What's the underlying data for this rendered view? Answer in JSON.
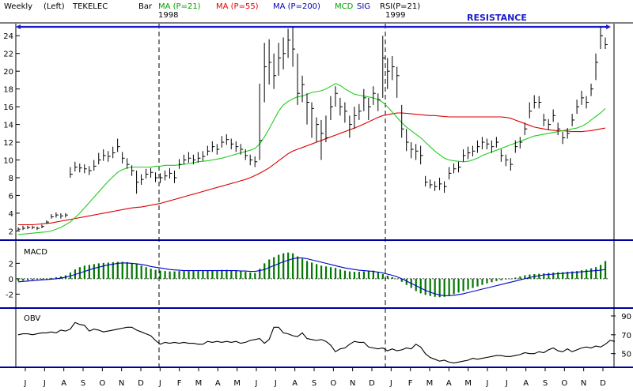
{
  "header": {
    "title_parts": [
      {
        "text": "Weekly",
        "color": "#000000"
      },
      {
        "text": "(Left)",
        "color": "#000000"
      },
      {
        "text": "TEKELEC",
        "color": "#000000"
      },
      {
        "text": "Bar",
        "color": "#000000"
      },
      {
        "text": "MA (P=21)",
        "color": "#00a000"
      },
      {
        "text": "MA (P=55)",
        "color": "#e00000"
      },
      {
        "text": "MA (P=200)",
        "color": "#0000b0"
      },
      {
        "text": "MCD",
        "color": "#00a000"
      },
      {
        "text": "SIG",
        "color": "#0000b0"
      },
      {
        "text": "RSI(P=21)",
        "color": "#000000"
      }
    ],
    "year_labels": [
      "1998",
      "1999"
    ],
    "resistance_label": "RESISTANCE"
  },
  "colors": {
    "price_bar": "#000000",
    "ma21": "#22cc22",
    "ma55": "#dd0000",
    "macd_hist": "#007700",
    "macd_signal": "#0000cc",
    "resistance": "#1a1ad0",
    "panel_border": "#0000a0",
    "obv_line": "#000000"
  },
  "chart_data": [
    {
      "type": "bar",
      "panel": "price",
      "title": "TEKELEC",
      "y_ticks": [
        2,
        4,
        6,
        8,
        10,
        12,
        14,
        16,
        18,
        20,
        22,
        24
      ],
      "ylim": [
        1.5,
        25
      ],
      "x_month_labels": [
        "J",
        "J",
        "A",
        "S",
        "O",
        "N",
        "D",
        "J",
        "F",
        "M",
        "A",
        "M",
        "J",
        "J",
        "A",
        "S",
        "O",
        "N",
        "D",
        "J",
        "F",
        "M",
        "A",
        "M",
        "J",
        "J",
        "A",
        "S",
        "O",
        "N",
        "D"
      ],
      "resistance_level": 25,
      "closes": [
        2.2,
        2.3,
        2.4,
        2.4,
        2.3,
        2.5,
        3.0,
        3.6,
        3.8,
        3.7,
        3.8,
        8.4,
        9.2,
        9.1,
        9.0,
        8.8,
        9.3,
        10.0,
        10.5,
        10.4,
        10.8,
        11.5,
        10.2,
        9.5,
        8.8,
        7.5,
        7.8,
        8.4,
        8.6,
        8.0,
        8.0,
        8.2,
        8.5,
        8.0,
        9.5,
        10.0,
        10.2,
        10.0,
        10.2,
        10.4,
        11.0,
        11.5,
        11.2,
        12.0,
        12.3,
        11.8,
        11.5,
        11.2,
        10.5,
        10.0,
        9.8,
        12.2,
        20.5,
        21.0,
        19.5,
        21.5,
        22.0,
        23.5,
        22.5,
        17.5,
        18.5,
        16.5,
        15.8,
        14.0,
        13.0,
        12.5,
        16.0,
        17.5,
        16.0,
        15.5,
        14.0,
        15.0,
        15.5,
        17.0,
        16.0,
        17.5,
        16.8,
        21.5,
        20.0,
        20.5,
        19.5,
        13.5,
        12.0,
        11.2,
        11.0,
        10.5,
        7.5,
        7.2,
        7.0,
        7.3,
        7.0,
        8.5,
        9.0,
        9.2,
        10.5,
        10.8,
        11.0,
        11.5,
        12.0,
        11.8,
        11.5,
        12.0,
        10.5,
        10.0,
        9.5,
        11.5,
        12.0,
        13.5,
        15.5,
        16.5,
        16.5,
        14.5,
        14.0,
        15.0,
        13.5,
        12.5,
        13.0,
        14.5,
        16.0,
        17.0,
        16.5,
        18.0,
        21.0,
        24.0,
        23.0
      ],
      "bar_highs": [
        2.4,
        2.6,
        2.6,
        2.6,
        2.5,
        2.7,
        3.2,
        3.9,
        4.1,
        4.0,
        4.0,
        9.2,
        9.8,
        9.6,
        9.5,
        9.3,
        10.0,
        10.8,
        11.2,
        11.0,
        11.5,
        12.4,
        10.9,
        10.2,
        9.4,
        8.8,
        8.4,
        9.0,
        9.1,
        8.6,
        8.5,
        8.8,
        9.1,
        8.8,
        10.1,
        10.6,
        10.9,
        10.6,
        10.9,
        11.0,
        11.6,
        12.1,
        11.8,
        12.7,
        12.9,
        12.4,
        12.1,
        11.8,
        11.2,
        10.6,
        10.4,
        18.6,
        23.2,
        23.6,
        22.0,
        23.2,
        23.8,
        24.8,
        25.0,
        22.0,
        19.5,
        17.5,
        16.5,
        14.8,
        14.5,
        15.0,
        17.2,
        18.3,
        17.0,
        16.5,
        15.0,
        16.0,
        16.3,
        18.0,
        17.0,
        18.3,
        17.5,
        24.0,
        21.5,
        21.7,
        20.5,
        16.2,
        13.5,
        12.0,
        11.8,
        11.6,
        8.2,
        7.8,
        7.6,
        8.0,
        7.6,
        9.2,
        9.6,
        9.8,
        11.2,
        11.5,
        11.6,
        12.2,
        12.6,
        12.4,
        12.2,
        12.6,
        11.2,
        10.6,
        10.2,
        12.2,
        12.6,
        14.2,
        16.5,
        17.3,
        17.2,
        15.2,
        14.6,
        15.7,
        14.2,
        13.2,
        13.6,
        15.2,
        16.8,
        17.8,
        17.2,
        18.6,
        22.0,
        25.0,
        23.8
      ],
      "bar_lows": [
        2.0,
        2.1,
        2.2,
        2.2,
        2.1,
        2.3,
        2.8,
        3.4,
        3.5,
        3.4,
        3.5,
        8.0,
        8.7,
        8.6,
        8.5,
        8.3,
        8.8,
        9.5,
        9.9,
        9.8,
        10.2,
        10.9,
        9.6,
        9.0,
        8.2,
        6.2,
        7.2,
        7.9,
        8.0,
        7.5,
        7.4,
        7.7,
        7.9,
        7.4,
        9.0,
        9.5,
        9.7,
        9.5,
        9.7,
        9.9,
        10.5,
        10.9,
        10.6,
        11.4,
        11.7,
        11.2,
        10.9,
        10.6,
        10.0,
        9.4,
        9.2,
        10.0,
        16.5,
        18.5,
        18.0,
        19.5,
        20.2,
        21.5,
        20.5,
        16.2,
        16.5,
        14.0,
        12.5,
        12.0,
        10.0,
        12.0,
        14.5,
        16.0,
        15.0,
        14.2,
        12.5,
        13.5,
        14.5,
        15.5,
        14.5,
        16.2,
        15.5,
        17.0,
        18.0,
        19.0,
        17.0,
        12.5,
        11.0,
        10.2,
        10.0,
        9.5,
        7.0,
        6.8,
        6.5,
        6.6,
        6.3,
        7.8,
        8.5,
        8.6,
        9.8,
        10.1,
        10.4,
        10.8,
        11.2,
        11.2,
        10.8,
        11.4,
        9.8,
        9.3,
        8.8,
        10.8,
        11.3,
        12.8,
        14.7,
        15.8,
        15.8,
        13.8,
        13.4,
        14.3,
        12.8,
        11.8,
        12.4,
        13.8,
        15.2,
        16.2,
        15.8,
        17.2,
        19.0,
        22.5,
        22.5
      ],
      "ma21": [
        1.6,
        1.65,
        1.7,
        1.75,
        1.8,
        1.85,
        1.9,
        2.0,
        2.2,
        2.4,
        2.7,
        3.0,
        3.5,
        4.0,
        4.6,
        5.2,
        5.8,
        6.4,
        7.0,
        7.6,
        8.1,
        8.6,
        8.9,
        9.1,
        9.2,
        9.2,
        9.2,
        9.2,
        9.2,
        9.3,
        9.3,
        9.4,
        9.4,
        9.4,
        9.45,
        9.5,
        9.6,
        9.7,
        9.8,
        9.85,
        9.9,
        10.0,
        10.1,
        10.2,
        10.35,
        10.5,
        10.65,
        10.8,
        10.95,
        11.1,
        11.3,
        11.8,
        12.6,
        13.5,
        14.5,
        15.5,
        16.2,
        16.6,
        16.9,
        17.1,
        17.2,
        17.4,
        17.6,
        17.7,
        17.8,
        18.0,
        18.3,
        18.6,
        18.4,
        18.0,
        17.7,
        17.4,
        17.3,
        17.2,
        17.1,
        17.0,
        16.8,
        16.5,
        16.0,
        15.4,
        14.8,
        14.2,
        13.7,
        13.3,
        12.9,
        12.5,
        12.0,
        11.5,
        11.0,
        10.6,
        10.2,
        10.0,
        9.9,
        9.85,
        9.8,
        9.85,
        10.0,
        10.2,
        10.5,
        10.7,
        10.9,
        11.1,
        11.3,
        11.5,
        11.7,
        11.9,
        12.1,
        12.3,
        12.5,
        12.7,
        12.8,
        12.9,
        13.0,
        13.1,
        13.2,
        13.3,
        13.4,
        13.5,
        13.6,
        13.8,
        14.1,
        14.5,
        14.9,
        15.3,
        15.8
      ],
      "ma55": [
        2.7,
        2.7,
        2.7,
        2.7,
        2.75,
        2.8,
        2.85,
        2.9,
        3.0,
        3.1,
        3.2,
        3.3,
        3.4,
        3.5,
        3.6,
        3.7,
        3.8,
        3.9,
        4.0,
        4.1,
        4.2,
        4.3,
        4.4,
        4.5,
        4.6,
        4.65,
        4.7,
        4.8,
        4.9,
        5.0,
        5.1,
        5.25,
        5.4,
        5.55,
        5.7,
        5.85,
        6.0,
        6.15,
        6.3,
        6.45,
        6.6,
        6.75,
        6.9,
        7.05,
        7.2,
        7.35,
        7.5,
        7.65,
        7.8,
        8.0,
        8.25,
        8.5,
        8.8,
        9.1,
        9.5,
        9.9,
        10.3,
        10.7,
        11.0,
        11.2,
        11.4,
        11.6,
        11.8,
        12.0,
        12.2,
        12.4,
        12.6,
        12.8,
        13.0,
        13.2,
        13.4,
        13.6,
        13.8,
        14.05,
        14.3,
        14.55,
        14.8,
        15.0,
        15.1,
        15.2,
        15.3,
        15.3,
        15.25,
        15.2,
        15.15,
        15.1,
        15.05,
        15.0,
        15.0,
        14.95,
        14.9,
        14.85,
        14.85,
        14.85,
        14.85,
        14.85,
        14.85,
        14.85,
        14.85,
        14.85,
        14.85,
        14.85,
        14.85,
        14.8,
        14.7,
        14.5,
        14.3,
        14.1,
        13.9,
        13.7,
        13.6,
        13.5,
        13.4,
        13.35,
        13.3,
        13.3,
        13.25,
        13.2,
        13.2,
        13.2,
        13.25,
        13.3,
        13.4,
        13.5,
        13.6
      ]
    },
    {
      "type": "bar",
      "panel": "MACD",
      "ylabel": "MACD",
      "y_ticks": [
        -2,
        0,
        2
      ],
      "ylim": [
        -3.5,
        4.5
      ],
      "histogram": [
        -0.3,
        -0.25,
        -0.2,
        -0.15,
        -0.1,
        -0.05,
        0.0,
        0.1,
        0.2,
        0.3,
        0.45,
        0.8,
        1.2,
        1.5,
        1.7,
        1.8,
        1.9,
        2.0,
        2.05,
        2.1,
        2.15,
        2.2,
        2.2,
        2.15,
        2.05,
        1.9,
        1.7,
        1.5,
        1.3,
        1.15,
        1.05,
        1.0,
        0.95,
        0.95,
        1.0,
        1.0,
        1.0,
        1.0,
        1.0,
        1.0,
        1.05,
        1.1,
        1.1,
        1.15,
        1.15,
        1.1,
        1.05,
        1.0,
        0.9,
        0.8,
        0.75,
        1.3,
        2.0,
        2.5,
        2.8,
        3.1,
        3.3,
        3.4,
        3.3,
        2.9,
        2.6,
        2.3,
        2.1,
        1.9,
        1.7,
        1.6,
        1.5,
        1.4,
        1.2,
        1.05,
        0.95,
        0.9,
        0.9,
        0.95,
        1.0,
        1.05,
        0.8,
        0.6,
        0.4,
        0.2,
        0.0,
        -0.4,
        -0.8,
        -1.2,
        -1.6,
        -1.9,
        -2.1,
        -2.25,
        -2.35,
        -2.4,
        -2.35,
        -2.2,
        -2.0,
        -1.8,
        -1.6,
        -1.4,
        -1.2,
        -1.0,
        -0.8,
        -0.6,
        -0.45,
        -0.3,
        -0.2,
        -0.1,
        0.0,
        0.15,
        0.3,
        0.45,
        0.55,
        0.6,
        0.65,
        0.7,
        0.75,
        0.8,
        0.85,
        0.85,
        0.9,
        0.95,
        1.0,
        1.1,
        1.2,
        1.35,
        1.5,
        1.8,
        2.3
      ],
      "signal": [
        -0.4,
        -0.35,
        -0.3,
        -0.25,
        -0.2,
        -0.15,
        -0.1,
        -0.05,
        0.0,
        0.1,
        0.2,
        0.35,
        0.55,
        0.75,
        0.95,
        1.15,
        1.35,
        1.5,
        1.65,
        1.8,
        1.9,
        2.0,
        2.05,
        2.05,
        2.0,
        1.95,
        1.85,
        1.75,
        1.6,
        1.5,
        1.4,
        1.3,
        1.2,
        1.15,
        1.1,
        1.05,
        1.05,
        1.05,
        1.05,
        1.05,
        1.05,
        1.05,
        1.05,
        1.05,
        1.05,
        1.05,
        1.05,
        1.0,
        1.0,
        0.95,
        0.95,
        1.05,
        1.2,
        1.45,
        1.7,
        1.95,
        2.2,
        2.4,
        2.6,
        2.7,
        2.7,
        2.6,
        2.45,
        2.3,
        2.15,
        2.0,
        1.85,
        1.7,
        1.55,
        1.4,
        1.3,
        1.2,
        1.1,
        1.05,
        1.0,
        0.95,
        0.85,
        0.75,
        0.6,
        0.45,
        0.25,
        0.0,
        -0.3,
        -0.6,
        -0.9,
        -1.2,
        -1.5,
        -1.75,
        -1.95,
        -2.1,
        -2.2,
        -2.2,
        -2.15,
        -2.05,
        -1.95,
        -1.8,
        -1.65,
        -1.5,
        -1.35,
        -1.2,
        -1.05,
        -0.9,
        -0.75,
        -0.6,
        -0.45,
        -0.3,
        -0.15,
        0.0,
        0.15,
        0.3,
        0.4,
        0.5,
        0.55,
        0.6,
        0.65,
        0.7,
        0.75,
        0.8,
        0.85,
        0.9,
        0.95,
        1.0,
        1.05,
        1.1,
        1.2
      ]
    },
    {
      "type": "line",
      "panel": "OBV",
      "ylabel": "OBV",
      "y_ticks": [
        50,
        70,
        90
      ],
      "ylim": [
        38,
        95
      ],
      "values": [
        70,
        71,
        71,
        70,
        71,
        72,
        72,
        73,
        72,
        75,
        74,
        76,
        83,
        81,
        80,
        74,
        76,
        75,
        73,
        74,
        75,
        76,
        77,
        78,
        78,
        75,
        73,
        71,
        69,
        64,
        60,
        62,
        61,
        62,
        61,
        62,
        61,
        61,
        60,
        60,
        63,
        62,
        63,
        62,
        63,
        62,
        63,
        61,
        62,
        64,
        65,
        66,
        61,
        65,
        78,
        78,
        72,
        71,
        69,
        68,
        72,
        66,
        65,
        64,
        65,
        63,
        59,
        52,
        55,
        56,
        60,
        63,
        62,
        62,
        57,
        56,
        55,
        56,
        53,
        55,
        53,
        54,
        56,
        55,
        60,
        57,
        50,
        46,
        44,
        42,
        43,
        41,
        40,
        41,
        42,
        43,
        45,
        44,
        45,
        46,
        47,
        48,
        48,
        47,
        47,
        48,
        49,
        51,
        50,
        50,
        52,
        51,
        54,
        56,
        53,
        52,
        55,
        52,
        54,
        56,
        57,
        56,
        58,
        57,
        60,
        64,
        63
      ]
    }
  ]
}
